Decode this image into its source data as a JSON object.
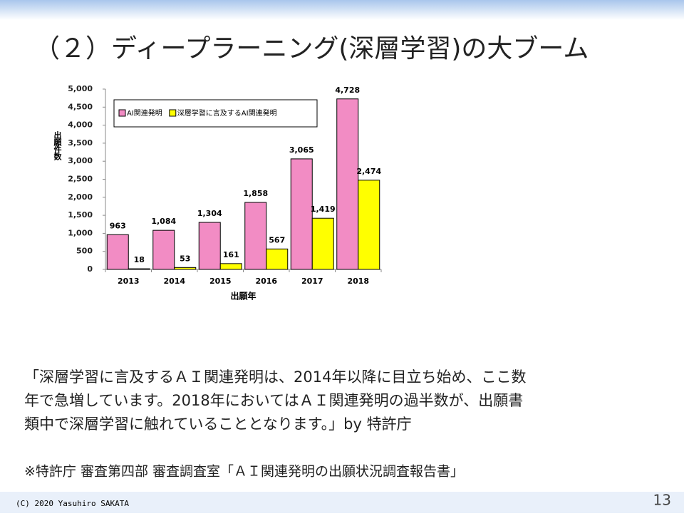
{
  "slide_title": "（２）ディープラーニング(深層学習)の大ブーム",
  "chart_data": {
    "type": "bar",
    "y_label": "出願件数",
    "x_label": "出願年",
    "categories": [
      "2013",
      "2014",
      "2015",
      "2016",
      "2017",
      "2018"
    ],
    "series": [
      {
        "name": "AI関連発明",
        "color": "#f28cc4",
        "values": [
          963,
          1084,
          1304,
          1858,
          3065,
          4728
        ],
        "value_labels": [
          "963",
          "1,084",
          "1,304",
          "1,858",
          "3,065",
          "4,728"
        ]
      },
      {
        "name": "深層学習に言及するAI関連発明",
        "color": "#ffff00",
        "values": [
          18,
          53,
          161,
          567,
          1419,
          2474
        ],
        "value_labels": [
          "18",
          "53",
          "161",
          "567",
          "1,419",
          "2,474"
        ]
      }
    ],
    "ylim": [
      0,
      5000
    ],
    "yticks": [
      0,
      500,
      {
        "value": 1000,
        "label": "1,000"
      },
      {
        "value": 1500,
        "label": "1,500"
      },
      {
        "value": 2000,
        "label": "2,000"
      },
      {
        "value": 2500,
        "label": "2,500"
      },
      {
        "value": 3000,
        "label": "3,000"
      },
      {
        "value": 3500,
        "label": "3,500"
      },
      {
        "value": 4000,
        "label": "4,000"
      },
      {
        "value": 4500,
        "label": "4,500"
      },
      {
        "value": 5000,
        "label": "5,000"
      }
    ],
    "legend": "upper left",
    "grid": false
  },
  "quote_lines": [
    "「深層学習に言及するＡＩ関連発明は、2014年以降に目立ち始め、ここ数",
    "年で急増しています。2018年においてはＡＩ関連発明の過半数が、出願書",
    "類中で深層学習に触れていることとなります。」by 特許庁"
  ],
  "source_note": "※特許庁 審査第四部 審査調査室「ＡＩ関連発明の出願状況調査報告書」",
  "footer": "(C) 2020 Yasuhiro SAKATA",
  "page_number": "13"
}
